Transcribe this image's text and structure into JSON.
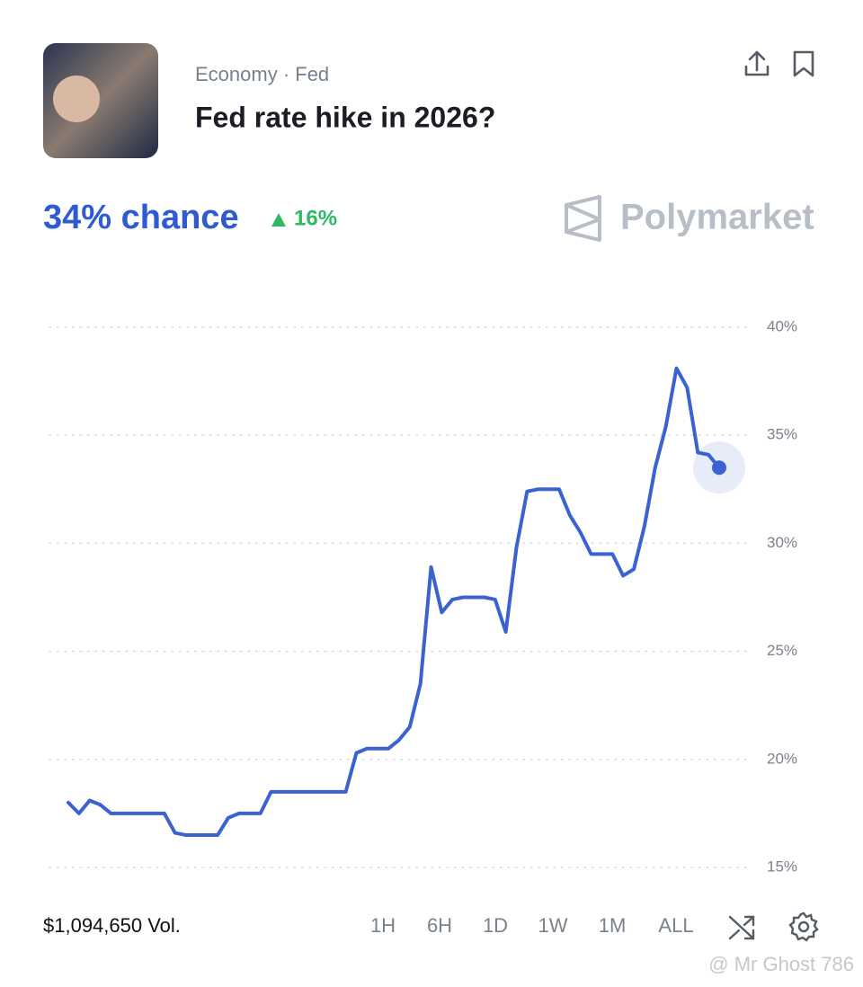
{
  "header": {
    "breadcrumb": "Economy · Fed",
    "title": "Fed rate hike in 2026?"
  },
  "summary": {
    "chance": "34% chance",
    "change": "16%",
    "brand": "Polymarket"
  },
  "chart_data": {
    "type": "line",
    "color": "#3a63d1",
    "grid": true,
    "ylim": [
      15,
      40
    ],
    "yticks": [
      {
        "value": 40,
        "label": "40%"
      },
      {
        "value": 35,
        "label": "35%"
      },
      {
        "value": 30,
        "label": "30%"
      },
      {
        "value": 25,
        "label": "25%"
      },
      {
        "value": 20,
        "label": "20%"
      },
      {
        "value": 15,
        "label": "15%"
      }
    ],
    "values": [
      18.0,
      17.5,
      18.1,
      17.9,
      17.5,
      17.5,
      17.5,
      17.5,
      17.5,
      17.5,
      16.6,
      16.5,
      16.5,
      16.5,
      16.5,
      17.3,
      17.5,
      17.5,
      17.5,
      18.5,
      18.5,
      18.5,
      18.5,
      18.5,
      18.5,
      18.5,
      18.5,
      20.3,
      20.5,
      20.5,
      20.5,
      20.9,
      21.5,
      23.5,
      28.9,
      26.8,
      27.4,
      27.5,
      27.5,
      27.5,
      27.4,
      25.9,
      29.8,
      32.4,
      32.5,
      32.5,
      32.5,
      31.3,
      30.5,
      29.5,
      29.5,
      29.5,
      28.5,
      28.8,
      30.8,
      33.5,
      35.4,
      38.1,
      37.2,
      34.2,
      34.1,
      33.5
    ]
  },
  "footer": {
    "volume": "$1,094,650 Vol.",
    "ranges": [
      "1H",
      "6H",
      "1D",
      "1W",
      "1M",
      "ALL"
    ],
    "watermark": "@ Mr Ghost 786"
  }
}
